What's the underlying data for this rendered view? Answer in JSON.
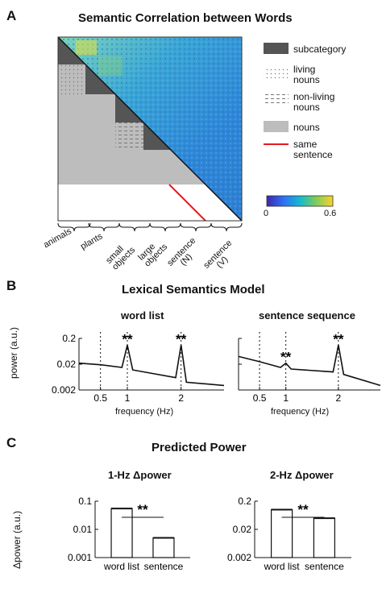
{
  "panel_a": {
    "letter": "A",
    "title": "Semantic Correlation between Words",
    "legend": {
      "subcategory": "subcategory",
      "living_nouns_1": "living",
      "living_nouns_2": "nouns",
      "nonliving_nouns_1": "non-living",
      "nonliving_nouns_2": "nouns",
      "nouns": "nouns",
      "same_sentence_1": "same",
      "same_sentence_2": "sentence"
    },
    "colorbar": {
      "min": "0",
      "max": "0.6"
    },
    "categories": [
      "animals",
      "plants",
      "small objects",
      "large objects",
      "sentence (N)",
      "sentence (V)"
    ],
    "cat_lines": [
      [
        "animals"
      ],
      [
        "plants"
      ],
      [
        "small",
        "objects"
      ],
      [
        "large",
        "objects"
      ],
      [
        "sentence",
        "(N)"
      ],
      [
        "sentence",
        "(V)"
      ]
    ],
    "colors": {
      "subcategory": "#555555",
      "nouns": "#bdbdbd",
      "same_sentence": "#e41a1c"
    }
  },
  "panel_b": {
    "letter": "B",
    "title": "Lexical Semantics Model",
    "ylabel": "power (a.u.)",
    "xlabel": "frequency (Hz)",
    "stars": "**",
    "charts": [
      {
        "subtitle": "word list",
        "yticks": [
          "0.2",
          "0.02",
          "0.002"
        ],
        "xticks": [
          "0.5",
          "1",
          "2"
        ]
      },
      {
        "subtitle": "sentence sequence",
        "yticks": [],
        "xticks": [
          "0.5",
          "1",
          "2"
        ]
      }
    ]
  },
  "panel_c": {
    "letter": "C",
    "title": "Predicted Power",
    "ylabel": "Δpower (a.u.)",
    "stars": "**",
    "charts": [
      {
        "subtitle": "1-Hz Δpower",
        "yticks": [
          "0.1",
          "0.01",
          "0.001"
        ],
        "categories": [
          "word list",
          "sentence"
        ]
      },
      {
        "subtitle": "2-Hz Δpower",
        "yticks": [
          "0.2",
          "0.02",
          "0.002"
        ],
        "categories": [
          "word list",
          "sentence"
        ]
      }
    ]
  },
  "chart_data": [
    {
      "type": "line",
      "title": "word list",
      "xlabel": "frequency (Hz)",
      "ylabel": "power (a.u.)",
      "yscale": "log",
      "ylim": [
        0.002,
        0.2
      ],
      "x": [
        0.1,
        0.5,
        0.9,
        1.0,
        1.1,
        1.9,
        2.0,
        2.1,
        2.8
      ],
      "series": [
        {
          "values": [
            0.022,
            0.019,
            0.015,
            0.11,
            0.012,
            0.006,
            0.11,
            0.004,
            0.003
          ]
        }
      ]
    },
    {
      "type": "line",
      "title": "sentence sequence",
      "xlabel": "frequency (Hz)",
      "yscale": "log",
      "ylim": [
        0.002,
        0.2
      ],
      "x": [
        0.1,
        0.5,
        0.9,
        1.0,
        1.1,
        1.9,
        2.0,
        2.1,
        2.8
      ],
      "series": [
        {
          "values": [
            0.04,
            0.025,
            0.015,
            0.022,
            0.013,
            0.01,
            0.11,
            0.008,
            0.003
          ]
        }
      ]
    },
    {
      "type": "bar",
      "title": "1-Hz Δpower",
      "ylabel": "Δpower (a.u.)",
      "yscale": "log",
      "ylim": [
        0.001,
        0.1
      ],
      "categories": [
        "word list",
        "sentence"
      ],
      "values": [
        0.055,
        0.005
      ]
    },
    {
      "type": "bar",
      "title": "2-Hz Δpower",
      "yscale": "log",
      "ylim": [
        0.002,
        0.2
      ],
      "categories": [
        "word list",
        "sentence"
      ],
      "values": [
        0.1,
        0.05
      ]
    }
  ]
}
